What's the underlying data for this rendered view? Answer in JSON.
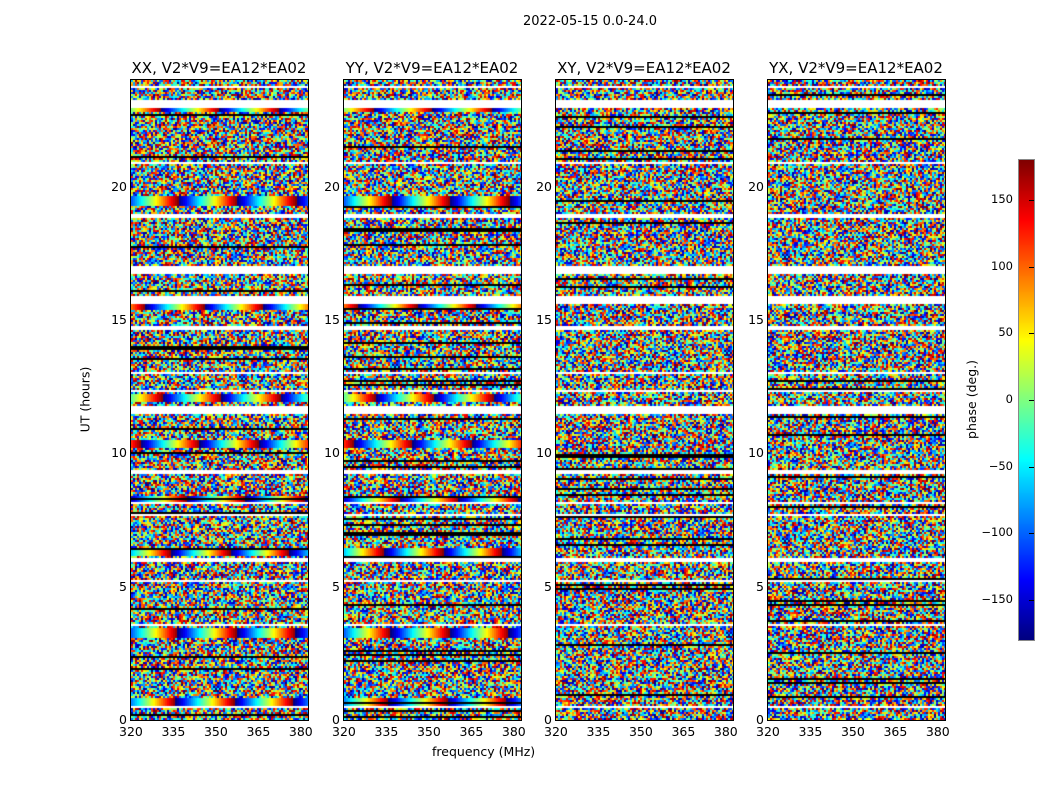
{
  "chart_data": {
    "type": "heatmap",
    "title": "2022-05-15 0.0-24.0",
    "xlabel": "frequency (MHz)",
    "ylabel": "UT (hours)",
    "xlim": [
      320,
      382.5
    ],
    "ylim": [
      0,
      24
    ],
    "xticks": [
      "320",
      "335",
      "350",
      "365",
      "380"
    ],
    "xtick_values": [
      320,
      335,
      350,
      365,
      380
    ],
    "yticks": [
      "0",
      "5",
      "10",
      "15",
      "20"
    ],
    "ytick_values": [
      0,
      5,
      10,
      15,
      20
    ],
    "panels": [
      {
        "title": "XX, V2*V9=EA12*EA02",
        "calibrator_ramps": true
      },
      {
        "title": "YY, V2*V9=EA12*EA02",
        "calibrator_ramps": true
      },
      {
        "title": "XY, V2*V9=EA12*EA02",
        "calibrator_ramps": false
      },
      {
        "title": "YX, V2*V9=EA12*EA02",
        "calibrator_ramps": false
      }
    ],
    "flagged_ut_ranges": [
      [
        0.45,
        0.6
      ],
      [
        3.55,
        3.65
      ],
      [
        5.2,
        5.3
      ],
      [
        6.0,
        6.1
      ],
      [
        7.7,
        7.8
      ],
      [
        8.15,
        8.2
      ],
      [
        9.3,
        9.4
      ],
      [
        11.55,
        11.85
      ],
      [
        12.35,
        12.45
      ],
      [
        13.0,
        13.05
      ],
      [
        14.7,
        14.8
      ],
      [
        15.65,
        15.9
      ],
      [
        16.75,
        17.05
      ],
      [
        18.9,
        19.0
      ],
      [
        20.9,
        20.95
      ],
      [
        23.0,
        23.25
      ],
      [
        23.75,
        23.8
      ]
    ],
    "calibrator_ut": [
      0.7,
      3.3,
      6.3,
      8.3,
      10.4,
      12.1,
      15.6,
      19.5,
      23.0
    ],
    "colorbar": {
      "label": "phase (deg.)",
      "range": [
        -180,
        180
      ],
      "ticks": [
        "150",
        "100",
        "50",
        "0",
        "−50",
        "−100",
        "−150"
      ],
      "tick_values": [
        150,
        100,
        50,
        0,
        -50,
        -100,
        -150
      ],
      "colormap": "jet"
    }
  }
}
